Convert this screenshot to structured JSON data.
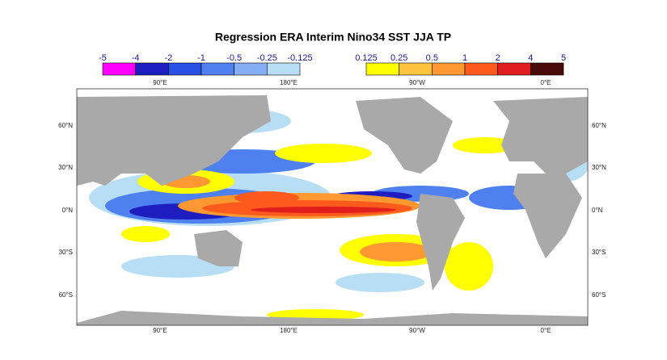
{
  "title": "Regression ERA Interim Nino34 SST JJA TP",
  "legend": {
    "negative": {
      "labels": [
        "-5",
        "-4",
        "-2",
        "-1",
        "-0.5",
        "-0.25",
        "-0.125"
      ],
      "colors": [
        "#ff00ff",
        "#1e1ec0",
        "#2a50e6",
        "#4f80f0",
        "#86aef6",
        "#b8def6"
      ]
    },
    "positive": {
      "labels": [
        "0.125",
        "0.25",
        "0.5",
        "1",
        "2",
        "4",
        "5"
      ],
      "colors": [
        "#ffff00",
        "#ffc23c",
        "#ff9830",
        "#ff5a1e",
        "#e01e1e",
        "#4a0a0a"
      ]
    }
  },
  "map": {
    "top_labels": [
      "90°E",
      "180°E",
      "90°W",
      "0°E"
    ],
    "bottom_labels": [
      "90°E",
      "180°E",
      "90°W",
      "0°E"
    ],
    "left_labels": [
      "60°N",
      "30°N",
      "0°N",
      "30°S",
      "60°S"
    ],
    "right_labels": [
      "60°N",
      "30°N",
      "0°N",
      "30°S",
      "60°S"
    ]
  }
}
